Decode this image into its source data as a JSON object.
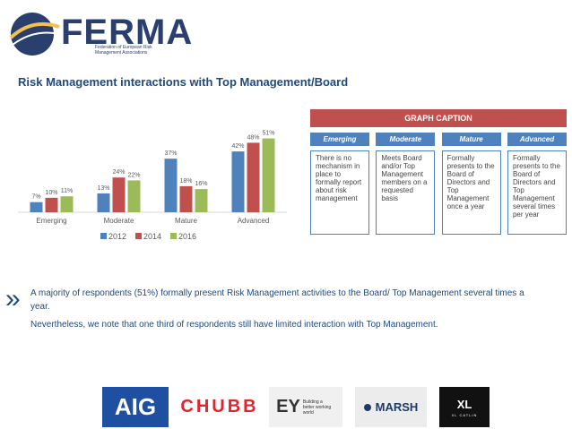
{
  "logo": {
    "name": "FERMA",
    "subtitle": "Federation of European Risk Management Associations"
  },
  "title": "Risk Management interactions with Top Management/Board",
  "chart_data": {
    "type": "bar",
    "title": "",
    "xlabel": "",
    "ylabel": "",
    "categories": [
      "Emerging",
      "Moderate",
      "Mature",
      "Advanced"
    ],
    "series": [
      {
        "name": "2012",
        "values": [
          7,
          13,
          37,
          42
        ],
        "color": "#4f81bd"
      },
      {
        "name": "2014",
        "values": [
          10,
          24,
          18,
          48
        ],
        "color": "#c0504d"
      },
      {
        "name": "2016",
        "values": [
          11,
          22,
          16,
          51
        ],
        "color": "#9bbb59"
      }
    ],
    "ylim": [
      0,
      60
    ],
    "grid": false,
    "legend": "bottom",
    "value_suffix": "%"
  },
  "caption": {
    "header": "GRAPH CAPTION",
    "columns": [
      {
        "label": "Emerging",
        "text": "There is no mechanism in place to formally report about risk management"
      },
      {
        "label": "Moderate",
        "text": "Meets Board and/or Top Management members on a requested basis"
      },
      {
        "label": "Mature",
        "text": "Formally presents to the Board of Directors and Top Management once a year"
      },
      {
        "label": "Advanced",
        "text": "Formally presents to the Board of Directors and Top Management several times per year"
      }
    ]
  },
  "text": {
    "bullet": "»",
    "p1": "A majority of respondents (51%) formally present Risk Management activities to the Board/ Top Management several times a year.",
    "p2": "Nevertheless, we note that one third of respondents still have limited interaction with Top Management."
  },
  "sponsors": {
    "aig": "AIG",
    "chubb": "CHUBB",
    "ey": "EY",
    "ey_tag": "Building a better working world",
    "marsh": "MARSH",
    "xl": "XL",
    "xl_tag": "XL CATLIN"
  }
}
